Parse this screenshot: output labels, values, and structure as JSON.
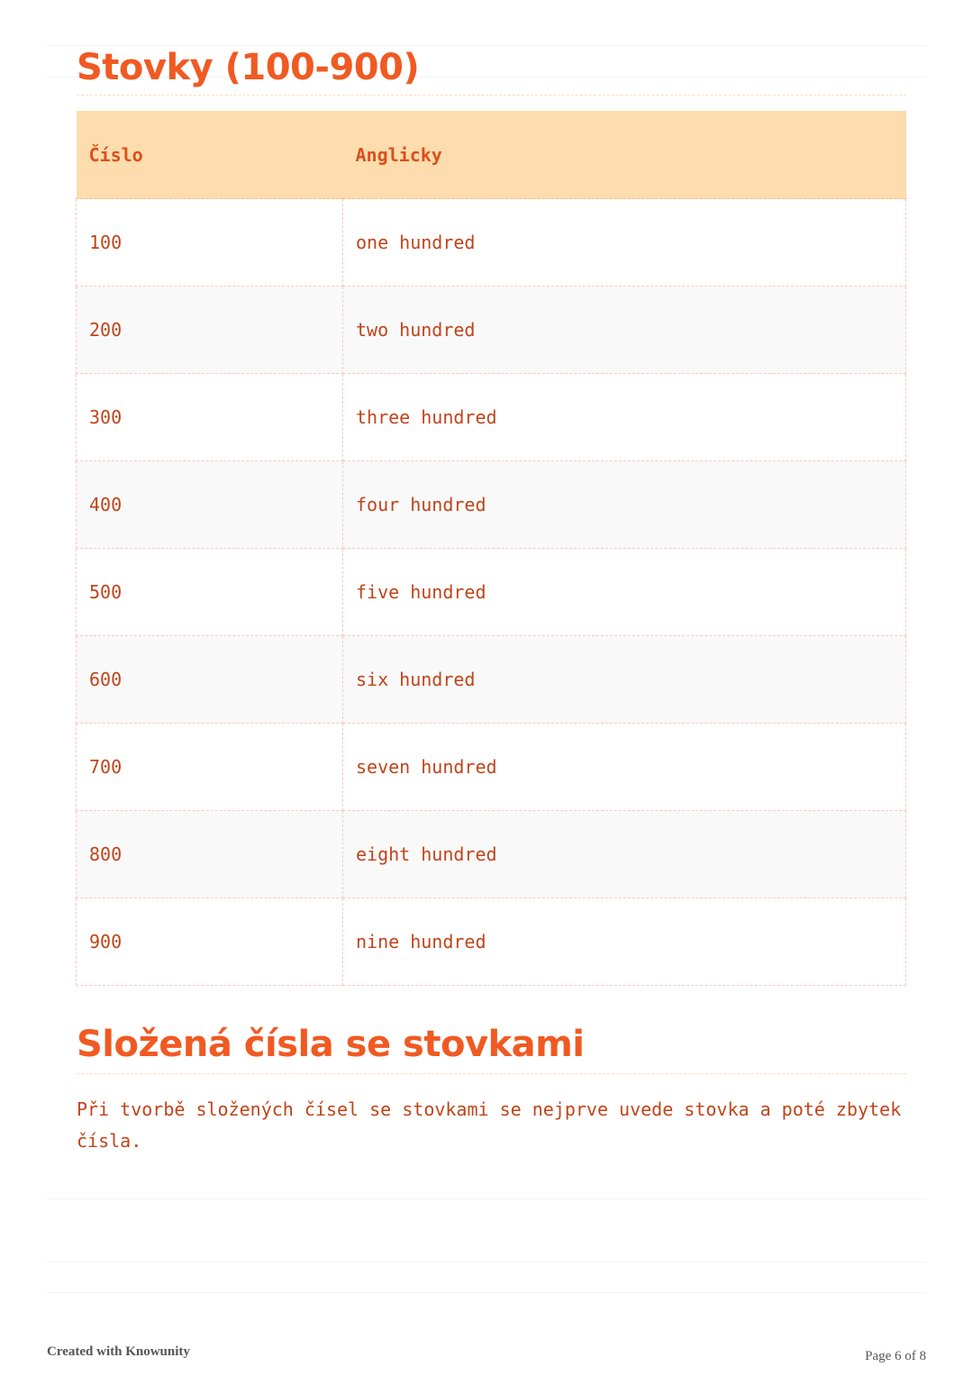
{
  "section1": {
    "title": "Stovky (100-900)",
    "table": {
      "headers": [
        "Číslo",
        "Anglicky"
      ],
      "rows": [
        [
          "100",
          "one hundred"
        ],
        [
          "200",
          "two hundred"
        ],
        [
          "300",
          "three hundred"
        ],
        [
          "400",
          "four hundred"
        ],
        [
          "500",
          "five hundred"
        ],
        [
          "600",
          "six hundred"
        ],
        [
          "700",
          "seven hundred"
        ],
        [
          "800",
          "eight hundred"
        ],
        [
          "900",
          "nine hundred"
        ]
      ]
    }
  },
  "section2": {
    "title": "Složená čísla se stovkami",
    "paragraph": "Při tvorbě složených čísel se stovkami se nejprve uvede stovka a poté zbytek čísla."
  },
  "footer": {
    "credit": "Created with Knowunity",
    "page": "Page 6 of 8"
  },
  "colors": {
    "accent": "#f05a22",
    "header_bg": "#fddcad",
    "text": "#c0441a"
  }
}
